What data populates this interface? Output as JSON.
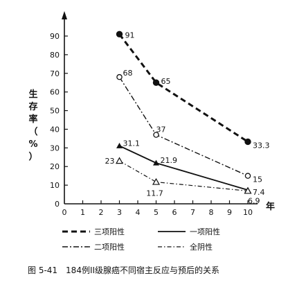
{
  "chart_data": {
    "type": "line",
    "xlabel": "年",
    "ylabel": "生存率（%）",
    "xlim": [
      0,
      10
    ],
    "ylim": [
      0,
      90
    ],
    "xticks": [
      0,
      1,
      2,
      3,
      4,
      5,
      6,
      7,
      8,
      9,
      10
    ],
    "yticks": [
      0,
      10,
      20,
      30,
      40,
      50,
      60,
      70,
      80,
      90
    ],
    "grid": false,
    "legend_position": "bottom",
    "series": [
      {
        "name": "三项阳性",
        "x": [
          3,
          5,
          10
        ],
        "values": [
          91,
          65,
          33.3
        ],
        "labels": [
          "91",
          "65",
          "33.3"
        ],
        "line_style": "dashed-bold",
        "marker": "filled-circle"
      },
      {
        "name": "二项阳性",
        "x": [
          3,
          5,
          10
        ],
        "values": [
          68,
          37,
          15
        ],
        "labels": [
          "68",
          "37",
          "15"
        ],
        "line_style": "dash-dot",
        "marker": "open-circle"
      },
      {
        "name": "一项阳性",
        "x": [
          3,
          5,
          10
        ],
        "values": [
          31.1,
          21.9,
          7.4
        ],
        "labels": [
          "31.1",
          "21.9",
          "7.4"
        ],
        "line_style": "solid",
        "marker": "filled-triangle"
      },
      {
        "name": "全阴性",
        "x": [
          3,
          5,
          10
        ],
        "values": [
          23,
          11.7,
          6.9
        ],
        "labels": [
          "23",
          "11.7",
          "6.9"
        ],
        "line_style": "dash-dot-fine",
        "marker": "open-triangle"
      }
    ],
    "caption": "图 5-41　184例II级腺癌不同宿主反应与预后的关系"
  }
}
